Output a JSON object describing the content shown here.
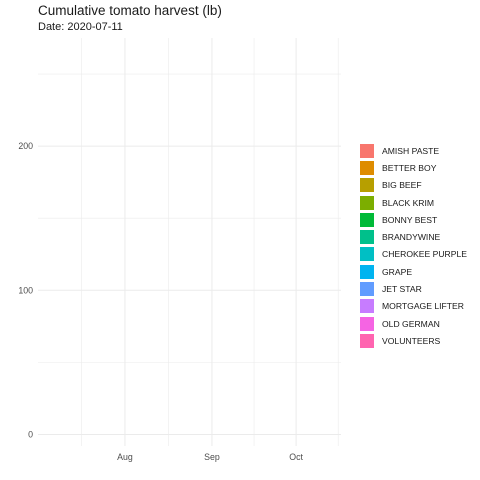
{
  "title": "Cumulative tomato harvest (lb)",
  "subtitle": "Date: 2020-07-11",
  "chart_data": {
    "type": "bar",
    "title": "Cumulative tomato harvest (lb)",
    "subtitle": "Date: 2020-07-11",
    "xlabel": "",
    "ylabel": "",
    "x_ticks": [
      "Aug",
      "Sep",
      "Oct"
    ],
    "x_tick_dates": [
      "2020-08-01",
      "2020-09-01",
      "2020-10-01"
    ],
    "xlim": [
      "2020-07-01",
      "2020-10-17"
    ],
    "y_ticks": [
      0,
      100,
      200
    ],
    "ylim": [
      -8,
      275
    ],
    "grid": true,
    "legend_position": "right",
    "series": [
      {
        "name": "AMISH PASTE",
        "color": "#F8766D",
        "values": [
          0
        ]
      },
      {
        "name": "BETTER BOY",
        "color": "#DE8C00",
        "values": [
          0
        ]
      },
      {
        "name": "BIG BEEF",
        "color": "#B79F00",
        "values": [
          0
        ]
      },
      {
        "name": "BLACK KRIM",
        "color": "#7CAE00",
        "values": [
          0
        ]
      },
      {
        "name": "BONNY BEST",
        "color": "#00BA38",
        "values": [
          0
        ]
      },
      {
        "name": "BRANDYWINE",
        "color": "#00C08B",
        "values": [
          0
        ]
      },
      {
        "name": "CHEROKEE PURPLE",
        "color": "#00BFC4",
        "values": [
          0
        ]
      },
      {
        "name": "GRAPE",
        "color": "#00B4F0",
        "values": [
          0
        ]
      },
      {
        "name": "JET STAR",
        "color": "#619CFF",
        "values": [
          0
        ]
      },
      {
        "name": "MORTGAGE LIFTER",
        "color": "#C77CFF",
        "values": [
          0
        ]
      },
      {
        "name": "OLD GERMAN",
        "color": "#F564E3",
        "values": [
          0
        ]
      },
      {
        "name": "VOLUNTEERS",
        "color": "#FF64B0",
        "values": [
          0
        ]
      }
    ]
  }
}
